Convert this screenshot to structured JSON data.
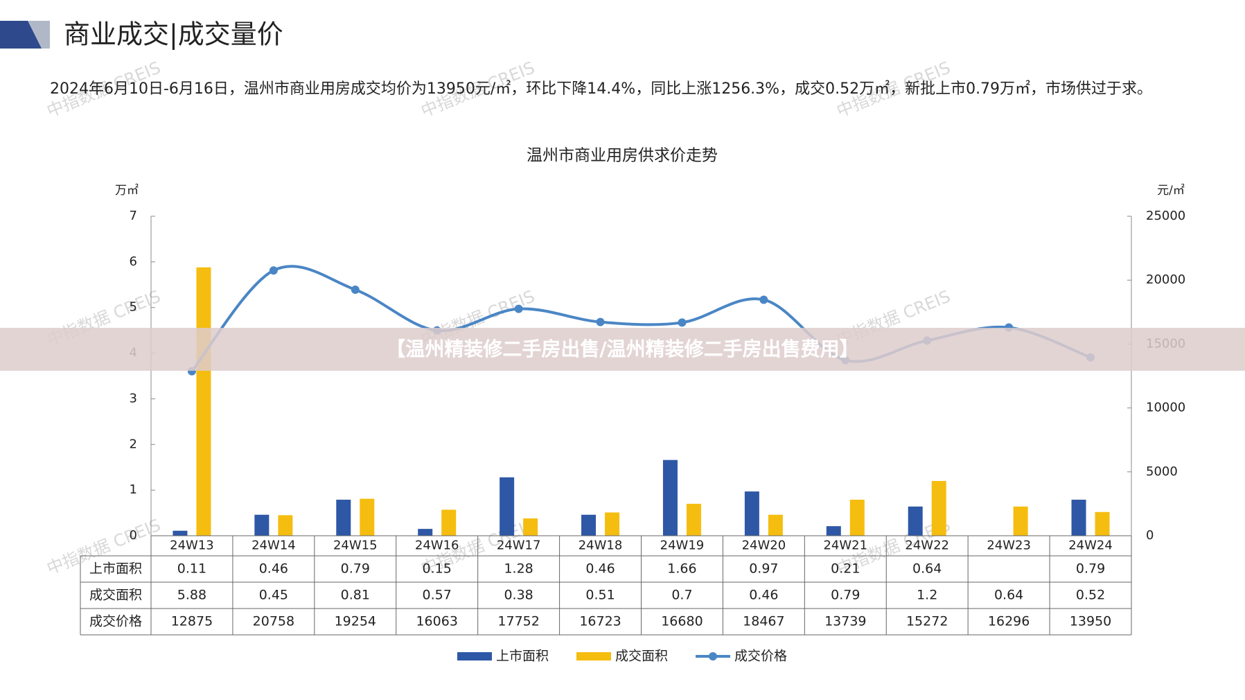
{
  "header": {
    "title": "商业成交|成交量价",
    "paragraph": "2024年6月10日-6月16日，温州市商业用房成交均价为13950元/㎡，环比下降14.4%，同比上涨1256.3%，成交0.52万㎡，新批上市0.79万㎡，市场供过于求。"
  },
  "watermark": "中指数据 CREIS",
  "banner": "【温州精装修二手房出售/温州精装修二手房出售费用】",
  "chart_data": {
    "type": "bar-line",
    "title": "温州市商业用房供求价走势",
    "y_label": "万㎡",
    "y2_label": "元/㎡",
    "categories": [
      "24W13",
      "24W14",
      "24W15",
      "24W16",
      "24W17",
      "24W18",
      "24W19",
      "24W20",
      "24W21",
      "24W22",
      "24W23",
      "24W24"
    ],
    "series": [
      {
        "name": "上市面积",
        "color": "#2e58a6",
        "type": "bar",
        "values": [
          0.11,
          0.46,
          0.79,
          0.15,
          1.28,
          0.46,
          1.66,
          0.97,
          0.21,
          0.64,
          null,
          0.79
        ]
      },
      {
        "name": "成交面积",
        "color": "#f5bd0f",
        "type": "bar",
        "values": [
          5.88,
          0.45,
          0.81,
          0.57,
          0.38,
          0.51,
          0.7,
          0.46,
          0.79,
          1.2,
          0.64,
          0.52
        ]
      },
      {
        "name": "成交价格",
        "color": "#4a86c5",
        "type": "line",
        "axis": "y2",
        "values": [
          12875,
          20758,
          19254,
          16063,
          17752,
          16723,
          16680,
          18467,
          13739,
          15272,
          16296,
          13950
        ]
      }
    ],
    "ylim": [
      0,
      7
    ],
    "yticks": [
      0,
      1,
      2,
      3,
      4,
      5,
      6,
      7
    ],
    "y2lim": [
      0,
      25000
    ],
    "y2ticks": [
      0,
      5000,
      10000,
      15000,
      20000,
      25000
    ]
  }
}
